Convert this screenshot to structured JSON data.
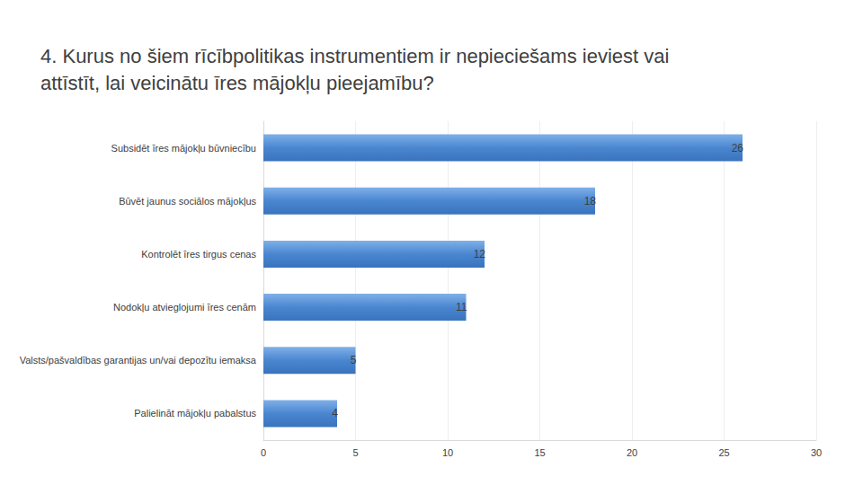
{
  "chart_data": {
    "type": "bar",
    "title": "4. Kurus no šiem rīcībpolitikas instrumentiem ir nepieciešams ieviest vai attīstīt, lai veicinātu īres mājokļu pieejamību?",
    "categories": [
      "Subsidēt īres mājokļu būvniecību",
      "Būvēt jaunus sociālos mājokļus",
      "Kontrolēt īres tirgus cenas",
      "Nodokļu atvieglojumi īres cenām",
      "Valsts/pašvaldības garantijas un/vai depozītu iemaksa",
      "Palielināt mājokļu pabalstus"
    ],
    "values": [
      26,
      18,
      12,
      11,
      5,
      4
    ],
    "color": "#4a86d0",
    "orientation": "horizontal",
    "data_labels": true,
    "grid": true,
    "xlim": [
      0,
      30
    ],
    "xticks": [
      0,
      5,
      10,
      15,
      20,
      25,
      30
    ]
  }
}
